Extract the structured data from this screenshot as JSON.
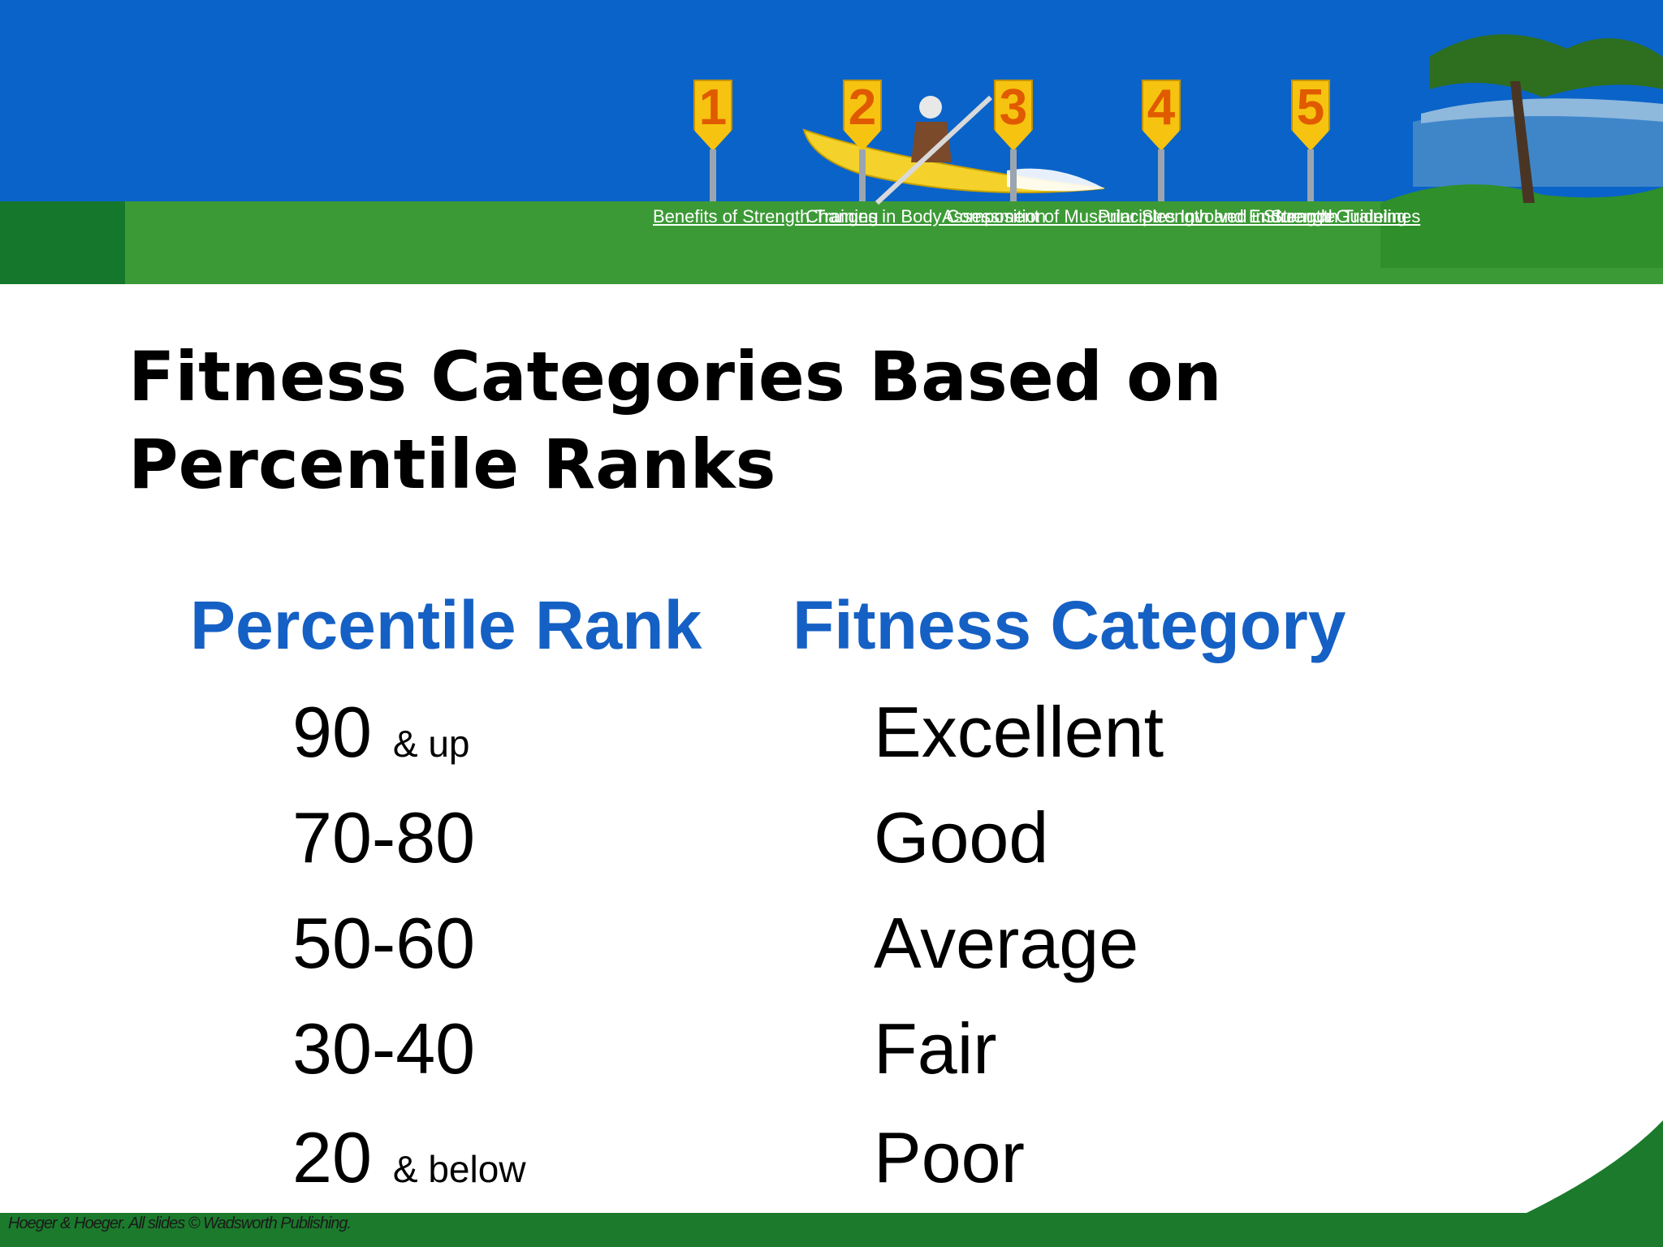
{
  "nav": {
    "markers": [
      "1",
      "2",
      "3",
      "4",
      "5"
    ],
    "links": [
      "Benefits of Strength Training",
      "Changes in Body Composition",
      "Assessment of Muscular Strength and Endurance",
      "Principles Involved in Strength Training",
      "Strength Guidelines"
    ]
  },
  "slide": {
    "title_line1": "Fitness Categories Based on",
    "title_line2": "Percentile Ranks"
  },
  "table": {
    "headers": [
      "Percentile Rank",
      "Fitness Category"
    ],
    "rows": [
      {
        "rank": "90",
        "suffix": "& up",
        "category": "Excellent"
      },
      {
        "rank": "70-80",
        "suffix": "",
        "category": "Good"
      },
      {
        "rank": "50-60",
        "suffix": "",
        "category": "Average"
      },
      {
        "rank": "30-40",
        "suffix": "",
        "category": "Fair"
      },
      {
        "rank": "20",
        "suffix": "& below",
        "category": "Poor"
      }
    ]
  },
  "footer": {
    "credit": "Hoeger & Hoeger. All slides © Wadsworth Publishing."
  },
  "colors": {
    "sky": "#0a63c9",
    "grass": "#3c9a36",
    "footer": "#1b7a2c",
    "header_text": "#1560c4",
    "marker": "#f6c310"
  }
}
